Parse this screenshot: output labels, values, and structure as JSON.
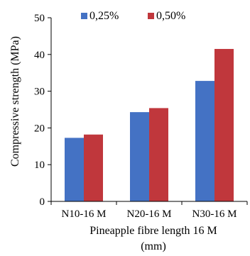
{
  "chart_data": {
    "type": "bar",
    "categories": [
      "N10-16 M",
      "N20-16 M",
      "N30-16 M"
    ],
    "series": [
      {
        "name": "0,25%",
        "color": "#4472C4",
        "values": [
          17.3,
          24.3,
          32.8
        ]
      },
      {
        "name": "0,50%",
        "color": "#C0373C",
        "values": [
          18.2,
          25.4,
          41.5
        ]
      }
    ],
    "xlabel_line1": "Pineapple fibre length 16 M",
    "xlabel_line2": "(mm)",
    "ylabel": "Compressive strength (MPa)",
    "ylim": [
      0,
      50
    ],
    "yticks": [
      "0",
      "10",
      "20",
      "30",
      "40",
      "50"
    ],
    "grid": false,
    "legend_position": "top"
  }
}
